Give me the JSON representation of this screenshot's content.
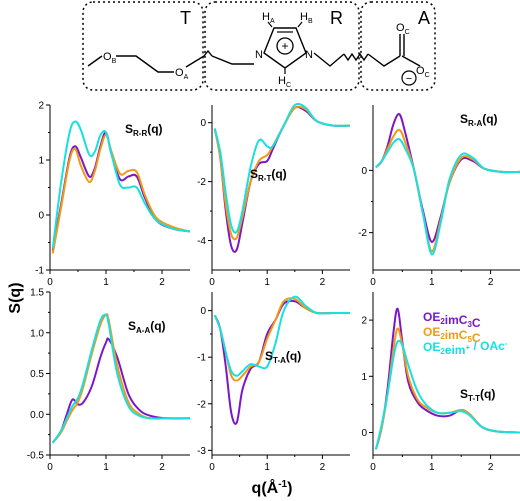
{
  "structure": {
    "segments": [
      "T",
      "R",
      "A"
    ],
    "atoms": {
      "OB": {
        "main": "O",
        "sub": "B"
      },
      "OA": {
        "main": "O",
        "sub": "A"
      },
      "HA": {
        "main": "H",
        "sub": "A"
      },
      "HB": {
        "main": "H",
        "sub": "B"
      },
      "HC": {
        "main": "H",
        "sub": "C"
      },
      "N1": {
        "main": "N"
      },
      "N2": {
        "main": "N"
      },
      "OC1": {
        "main": "O",
        "sub": "C"
      },
      "OC2": {
        "main": "O",
        "sub": "C"
      },
      "plus": "+",
      "minus": "−"
    }
  },
  "axes_text": {
    "ylabel": "S(q)",
    "xlabel_main": "q(Å",
    "xlabel_sup": "-1",
    "xlabel_end": ")"
  },
  "legend": {
    "colors": [
      "#7b16c9",
      "#f29a13",
      "#18e0e0"
    ],
    "items": [
      {
        "name": "OE2imC3C",
        "parts": [
          [
            "OE",
            ""
          ],
          [
            "2",
            "sub"
          ],
          [
            "imC",
            ""
          ],
          [
            "3",
            "sub"
          ],
          [
            "C",
            ""
          ]
        ]
      },
      {
        "name": "OE2imC5C",
        "parts": [
          [
            "OE",
            ""
          ],
          [
            "2",
            "sub"
          ],
          [
            "imC",
            ""
          ],
          [
            "5",
            "sub"
          ],
          [
            "C",
            ""
          ]
        ]
      },
      {
        "name": "OE2eim+ / OAc-",
        "parts": [
          [
            "OE",
            ""
          ],
          [
            "2",
            "sub"
          ],
          [
            "eim",
            ""
          ],
          [
            "+",
            "sup"
          ],
          [
            " / OAc",
            ""
          ],
          [
            "-",
            "sup"
          ]
        ]
      }
    ]
  },
  "chart_data": [
    {
      "type": "line",
      "title": "SR-R(q)",
      "label_main": "S",
      "label_sub": "R-R",
      "label_end": "(q)",
      "xlim": [
        0,
        2.5
      ],
      "ylim": [
        -1,
        2
      ],
      "xticks": [
        0,
        1,
        2
      ],
      "yticks": [
        -1,
        0,
        1,
        2
      ],
      "ytick_labels": [
        "-1",
        "0",
        "1",
        "2"
      ],
      "series": [
        {
          "name": "OE2imC3C",
          "x": [
            0.05,
            0.2,
            0.35,
            0.45,
            0.55,
            0.7,
            0.8,
            0.9,
            1.0,
            1.1,
            1.25,
            1.4,
            1.55,
            1.7,
            1.9,
            2.2,
            2.5
          ],
          "y": [
            -0.65,
            0.2,
            1.05,
            1.25,
            1.05,
            0.7,
            0.85,
            1.25,
            1.5,
            1.1,
            0.65,
            0.7,
            0.7,
            0.3,
            -0.1,
            -0.25,
            -0.3
          ]
        },
        {
          "name": "OE2imC5C",
          "x": [
            0.05,
            0.2,
            0.35,
            0.45,
            0.55,
            0.7,
            0.8,
            0.9,
            1.0,
            1.1,
            1.25,
            1.4,
            1.55,
            1.7,
            1.9,
            2.2,
            2.5
          ],
          "y": [
            -0.7,
            0.15,
            1.0,
            1.2,
            0.9,
            0.6,
            0.8,
            1.2,
            1.45,
            1.15,
            0.75,
            0.8,
            0.78,
            0.35,
            -0.05,
            -0.22,
            -0.3
          ]
        },
        {
          "name": "OE2eim+ / OAc-",
          "x": [
            0.05,
            0.2,
            0.35,
            0.45,
            0.55,
            0.7,
            0.8,
            0.9,
            1.0,
            1.1,
            1.25,
            1.4,
            1.55,
            1.7,
            1.9,
            2.2,
            2.5
          ],
          "y": [
            -0.6,
            0.6,
            1.5,
            1.7,
            1.55,
            1.1,
            1.15,
            1.45,
            1.5,
            1.1,
            0.55,
            0.5,
            0.5,
            0.2,
            -0.1,
            -0.25,
            -0.3
          ]
        }
      ]
    },
    {
      "type": "line",
      "title": "SR-T(q)",
      "label_main": "S",
      "label_sub": "R-T",
      "label_end": "(q)",
      "xlim": [
        0,
        2.5
      ],
      "ylim": [
        -5,
        0.6
      ],
      "xticks": [
        0,
        1,
        2
      ],
      "yticks": [
        -4,
        -2,
        0
      ],
      "ytick_labels": [
        "-4",
        "-2",
        "0"
      ],
      "series": [
        {
          "name": "OE2imC3C",
          "x": [
            0.05,
            0.15,
            0.25,
            0.35,
            0.45,
            0.55,
            0.7,
            0.85,
            1.0,
            1.1,
            1.3,
            1.5,
            1.7,
            1.9,
            2.2,
            2.5
          ],
          "y": [
            -0.2,
            -1.2,
            -3.0,
            -4.2,
            -4.3,
            -3.4,
            -2.0,
            -1.4,
            -1.3,
            -0.9,
            -0.1,
            0.5,
            0.4,
            0.05,
            -0.1,
            -0.1
          ]
        },
        {
          "name": "OE2imC5C",
          "x": [
            0.05,
            0.15,
            0.25,
            0.35,
            0.45,
            0.55,
            0.7,
            0.85,
            1.0,
            1.1,
            1.3,
            1.5,
            1.7,
            1.9,
            2.2,
            2.5
          ],
          "y": [
            -0.2,
            -1.2,
            -2.8,
            -3.8,
            -3.9,
            -3.2,
            -2.0,
            -1.3,
            -1.1,
            -0.8,
            -0.1,
            0.5,
            0.45,
            0.05,
            -0.1,
            -0.1
          ]
        },
        {
          "name": "OE2eim+ / OAc-",
          "x": [
            0.05,
            0.15,
            0.25,
            0.35,
            0.45,
            0.55,
            0.7,
            0.85,
            1.0,
            1.1,
            1.3,
            1.5,
            1.7,
            1.9,
            2.2,
            2.5
          ],
          "y": [
            -0.2,
            -1.0,
            -2.4,
            -3.5,
            -3.7,
            -3.0,
            -1.5,
            -0.6,
            -0.8,
            -0.8,
            -0.1,
            0.6,
            0.5,
            0.05,
            -0.1,
            -0.1
          ]
        }
      ]
    },
    {
      "type": "line",
      "title": "SR-A(q)",
      "label_main": "S",
      "label_sub": "R-A",
      "label_end": "(q)",
      "xlim": [
        0,
        2.5
      ],
      "ylim": [
        -3.2,
        2.1
      ],
      "xticks": [
        0,
        1,
        2
      ],
      "yticks": [
        -2,
        0
      ],
      "ytick_labels": [
        "-2",
        "0"
      ],
      "series": [
        {
          "name": "OE2imC3C",
          "x": [
            0.05,
            0.15,
            0.25,
            0.35,
            0.45,
            0.55,
            0.7,
            0.85,
            1.0,
            1.15,
            1.3,
            1.5,
            1.7,
            1.9,
            2.2,
            2.5
          ],
          "y": [
            0.1,
            0.3,
            0.8,
            1.5,
            1.8,
            1.2,
            0.0,
            -1.3,
            -2.3,
            -1.5,
            -0.4,
            0.35,
            0.3,
            0.05,
            -0.05,
            -0.05
          ]
        },
        {
          "name": "OE2imC5C",
          "x": [
            0.05,
            0.15,
            0.25,
            0.35,
            0.45,
            0.55,
            0.7,
            0.85,
            1.0,
            1.15,
            1.3,
            1.5,
            1.7,
            1.9,
            2.2,
            2.5
          ],
          "y": [
            0.1,
            0.3,
            0.7,
            1.1,
            1.3,
            0.9,
            0.0,
            -1.4,
            -2.6,
            -1.6,
            -0.4,
            0.4,
            0.35,
            0.05,
            -0.05,
            -0.05
          ]
        },
        {
          "name": "OE2eim+ / OAc-",
          "x": [
            0.05,
            0.15,
            0.25,
            0.35,
            0.45,
            0.55,
            0.7,
            0.85,
            1.0,
            1.15,
            1.3,
            1.5,
            1.7,
            1.9,
            2.2,
            2.5
          ],
          "y": [
            0.1,
            0.3,
            0.6,
            0.9,
            1.0,
            0.7,
            0.0,
            -1.4,
            -2.7,
            -1.7,
            -0.3,
            0.5,
            0.4,
            0.05,
            -0.05,
            -0.05
          ]
        }
      ]
    },
    {
      "type": "line",
      "title": "SA-A(q)",
      "label_main": "S",
      "label_sub": "A-A",
      "label_end": "(q)",
      "xlim": [
        0,
        2.5
      ],
      "ylim": [
        -0.5,
        1.5
      ],
      "xticks": [
        0,
        1,
        2
      ],
      "yticks": [
        -0.5,
        0,
        0.5,
        1.0,
        1.5
      ],
      "ytick_labels": [
        "-0.5",
        "0.0",
        "0.5",
        "1.0",
        "1.5"
      ],
      "series": [
        {
          "name": "OE2imC3C",
          "x": [
            0.05,
            0.2,
            0.3,
            0.4,
            0.5,
            0.6,
            0.75,
            0.9,
            1.0,
            1.05,
            1.2,
            1.4,
            1.6,
            1.8,
            2.1,
            2.5
          ],
          "y": [
            -0.35,
            -0.2,
            0.0,
            0.18,
            0.12,
            0.15,
            0.35,
            0.7,
            0.88,
            0.92,
            0.7,
            0.25,
            0.05,
            -0.02,
            -0.05,
            -0.05
          ]
        },
        {
          "name": "OE2imC5C",
          "x": [
            0.05,
            0.2,
            0.3,
            0.4,
            0.5,
            0.6,
            0.75,
            0.9,
            1.0,
            1.05,
            1.2,
            1.4,
            1.6,
            1.8,
            2.1,
            2.5
          ],
          "y": [
            -0.35,
            -0.22,
            -0.08,
            0.05,
            0.15,
            0.35,
            0.75,
            1.1,
            1.22,
            1.15,
            0.6,
            0.15,
            0.0,
            -0.05,
            -0.05,
            -0.05
          ]
        },
        {
          "name": "OE2eim+ / OAc-",
          "x": [
            0.05,
            0.2,
            0.3,
            0.4,
            0.5,
            0.6,
            0.75,
            0.9,
            1.0,
            1.05,
            1.2,
            1.4,
            1.6,
            1.8,
            2.1,
            2.5
          ],
          "y": [
            -0.35,
            -0.2,
            -0.05,
            0.1,
            0.2,
            0.4,
            0.8,
            1.15,
            1.22,
            1.1,
            0.5,
            0.1,
            -0.02,
            -0.05,
            -0.05,
            -0.05
          ]
        }
      ]
    },
    {
      "type": "line",
      "title": "ST-A(q)",
      "label_main": "S",
      "label_sub": "T-A",
      "label_end": "(q)",
      "xlim": [
        0,
        2.5
      ],
      "ylim": [
        -3.1,
        0.4
      ],
      "xticks": [
        0,
        1,
        2
      ],
      "yticks": [
        -3,
        -2,
        -1,
        0
      ],
      "ytick_labels": [
        "-3",
        "-2",
        "-1",
        "0"
      ],
      "series": [
        {
          "name": "OE2imC3C",
          "x": [
            0.05,
            0.15,
            0.25,
            0.35,
            0.45,
            0.55,
            0.7,
            0.85,
            1.0,
            1.15,
            1.3,
            1.5,
            1.7,
            1.9,
            2.2,
            2.5
          ],
          "y": [
            -0.1,
            -0.4,
            -1.2,
            -2.2,
            -2.4,
            -1.7,
            -1.25,
            -1.1,
            -0.5,
            -0.2,
            0.15,
            0.2,
            0.05,
            -0.05,
            -0.05,
            -0.05
          ]
        },
        {
          "name": "OE2imC5C",
          "x": [
            0.05,
            0.15,
            0.25,
            0.35,
            0.45,
            0.55,
            0.7,
            0.85,
            1.0,
            1.15,
            1.3,
            1.5,
            1.7,
            1.9,
            2.2,
            2.5
          ],
          "y": [
            -0.1,
            -0.4,
            -0.9,
            -1.4,
            -1.5,
            -1.4,
            -1.2,
            -1.1,
            -0.6,
            -0.2,
            0.2,
            0.25,
            0.05,
            -0.05,
            -0.05,
            -0.05
          ]
        },
        {
          "name": "OE2eim+ / OAc-",
          "x": [
            0.05,
            0.15,
            0.25,
            0.35,
            0.45,
            0.55,
            0.7,
            0.85,
            1.0,
            1.15,
            1.3,
            1.5,
            1.7,
            1.9,
            2.2,
            2.5
          ],
          "y": [
            -0.1,
            -0.4,
            -0.9,
            -1.3,
            -1.4,
            -1.3,
            -1.15,
            -1.2,
            -1.2,
            -0.7,
            0.0,
            0.3,
            0.1,
            -0.05,
            -0.05,
            -0.05
          ]
        }
      ]
    },
    {
      "type": "line",
      "title": "ST-T(q)",
      "label_main": "S",
      "label_sub": "T-T",
      "label_end": "(q)",
      "xlim": [
        0,
        2.5
      ],
      "ylim": [
        -0.4,
        2.5
      ],
      "xticks": [
        0,
        1,
        2
      ],
      "yticks": [
        0,
        1,
        2
      ],
      "ytick_labels": [
        "0",
        "1",
        "2"
      ],
      "series": [
        {
          "name": "OE2imC3C",
          "x": [
            0.05,
            0.15,
            0.25,
            0.35,
            0.42,
            0.5,
            0.6,
            0.75,
            0.9,
            1.1,
            1.3,
            1.5,
            1.65,
            1.85,
            2.1,
            2.5
          ],
          "y": [
            -0.3,
            0.1,
            0.8,
            1.8,
            2.2,
            1.6,
            0.9,
            0.55,
            0.4,
            0.3,
            0.3,
            0.4,
            0.32,
            0.1,
            0.02,
            0.0
          ]
        },
        {
          "name": "OE2imC5C",
          "x": [
            0.05,
            0.15,
            0.25,
            0.35,
            0.42,
            0.5,
            0.6,
            0.75,
            0.9,
            1.1,
            1.3,
            1.5,
            1.65,
            1.85,
            2.1,
            2.5
          ],
          "y": [
            -0.3,
            0.1,
            0.7,
            1.5,
            1.85,
            1.55,
            1.0,
            0.6,
            0.45,
            0.35,
            0.35,
            0.4,
            0.32,
            0.1,
            0.02,
            0.0
          ]
        },
        {
          "name": "OE2eim+ / OAc-",
          "x": [
            0.05,
            0.15,
            0.25,
            0.35,
            0.42,
            0.5,
            0.6,
            0.75,
            0.9,
            1.1,
            1.3,
            1.5,
            1.65,
            1.85,
            2.1,
            2.5
          ],
          "y": [
            -0.3,
            0.15,
            0.7,
            1.35,
            1.62,
            1.55,
            1.2,
            0.75,
            0.5,
            0.35,
            0.35,
            0.38,
            0.3,
            0.1,
            0.02,
            0.0
          ]
        }
      ]
    }
  ]
}
